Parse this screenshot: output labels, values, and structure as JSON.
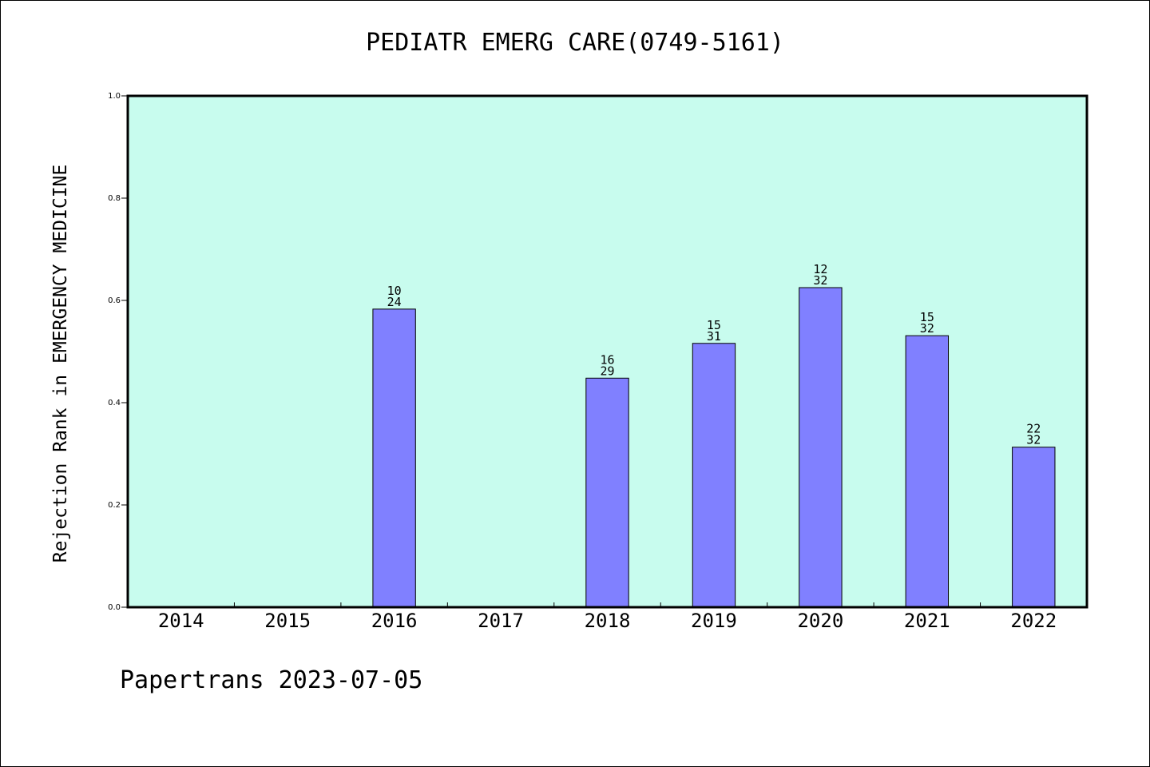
{
  "title": "PEDIATR EMERG CARE(0749-5161)",
  "footer": "Papertrans 2023-07-05",
  "colors": {
    "plot_background": "#c8fcee",
    "bar_fill": "#8080ff",
    "bar_stroke": "#000000",
    "axis": "#000000"
  },
  "chart_data": {
    "type": "bar",
    "title": "PEDIATR EMERG CARE(0749-5161)",
    "xlabel": "",
    "ylabel": "Rejection Rank in EMERGENCY MEDICINE",
    "ylim": [
      0,
      1.0
    ],
    "yticks": [
      "0.0",
      "0.2",
      "0.4",
      "0.6",
      "0.8",
      "1.0"
    ],
    "grid": false,
    "categories": [
      "2014",
      "2015",
      "2016",
      "2017",
      "2018",
      "2019",
      "2020",
      "2021",
      "2022"
    ],
    "values": [
      null,
      null,
      0.583,
      null,
      0.448,
      0.516,
      0.625,
      0.531,
      0.313
    ],
    "annotations": [
      null,
      null,
      {
        "top": "10",
        "bottom": "24"
      },
      null,
      {
        "top": "16",
        "bottom": "29"
      },
      {
        "top": "15",
        "bottom": "31"
      },
      {
        "top": "12",
        "bottom": "32"
      },
      {
        "top": "15",
        "bottom": "32"
      },
      {
        "top": "22",
        "bottom": "32"
      }
    ]
  }
}
